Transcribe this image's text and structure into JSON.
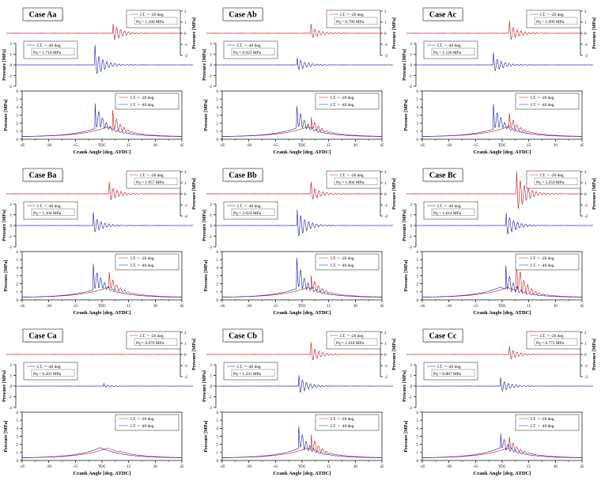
{
  "figure": {
    "xlabel": "Crank Angle [deg. ATDC]",
    "ylabel": "Pressure [MPa]",
    "x_tick_labels": [
      "-45",
      "-30",
      "-15",
      "TDC",
      "15",
      "30",
      "45"
    ],
    "x_tick_values": [
      -45,
      -30,
      -15,
      0,
      15,
      30,
      45
    ],
    "osc_tick_labels": [
      "2",
      "1",
      "0",
      "-1",
      "-2"
    ],
    "osc_tick_values": [
      2,
      1,
      0,
      -1,
      -2
    ],
    "bottom_tick_labels": [
      "0",
      "1",
      "2",
      "3",
      "4",
      "5",
      "6"
    ],
    "bottom_tick_values": [
      0,
      1,
      2,
      3,
      4,
      5,
      6
    ],
    "colors": {
      "red": "#cc1111",
      "blue": "#1a1aae",
      "legend_red": "#dd7777",
      "legend_blue": "#7777cc"
    },
    "legend_red_label": "I.T. = -20 deg.",
    "legend_blue_label": "I.T. = -40 deg."
  },
  "chart_data": [
    {
      "case": "Case Aa",
      "type": "line",
      "xlabel": "Crank Angle [deg. ATDC]",
      "ylabel": "Pressure [MPa]",
      "x_range": [
        -45,
        45
      ],
      "osc_ylim": [
        -2,
        2
      ],
      "bottom_ylim": [
        0,
        6
      ],
      "series": [
        {
          "name": "I.T. = -20 deg.",
          "color": "red",
          "pq_label": "Pq = 1.160 MPa",
          "pq_mpa": 1.16,
          "spike_angle_deg": 6,
          "bottom_peak_mpa": 3.5
        },
        {
          "name": "I.T. = -40 deg.",
          "color": "blue",
          "pq_label": "Pq = 1.716 MPa",
          "pq_mpa": 1.716,
          "spike_angle_deg": -4,
          "bottom_peak_mpa": 4.5
        }
      ]
    },
    {
      "case": "Case Ab",
      "type": "line",
      "xlabel": "Crank Angle [deg. ATDC]",
      "ylabel": "Pressure [MPa]",
      "x_range": [
        -45,
        45
      ],
      "osc_ylim": [
        -2,
        2
      ],
      "bottom_ylim": [
        0,
        6
      ],
      "series": [
        {
          "name": "I.T. = -20 deg.",
          "color": "red",
          "pq_label": "Pq = 0.799 MPa",
          "pq_mpa": 0.799,
          "spike_angle_deg": 5,
          "bottom_peak_mpa": 2.8
        },
        {
          "name": "I.T. = -40 deg.",
          "color": "blue",
          "pq_label": "Pq = 0.923 MPa",
          "pq_mpa": 0.923,
          "spike_angle_deg": -3,
          "bottom_peak_mpa": 4.0
        }
      ]
    },
    {
      "case": "Case Ac",
      "type": "line",
      "xlabel": "Crank Angle [deg. ATDC]",
      "ylabel": "Pressure [MPa]",
      "x_range": [
        -45,
        45
      ],
      "osc_ylim": [
        -2,
        2
      ],
      "bottom_ylim": [
        0,
        6
      ],
      "series": [
        {
          "name": "I.T. = -20 deg.",
          "color": "red",
          "pq_label": "Pq = 1.099 MPa",
          "pq_mpa": 1.099,
          "spike_angle_deg": 4,
          "bottom_peak_mpa": 3.2
        },
        {
          "name": "I.T. = -40 deg.",
          "color": "blue",
          "pq_label": "Pq = 1.126 MPa",
          "pq_mpa": 1.126,
          "spike_angle_deg": -5,
          "bottom_peak_mpa": 4.3
        }
      ]
    },
    {
      "case": "Case Ba",
      "type": "line",
      "xlabel": "Crank Angle [deg. ATDC]",
      "ylabel": "Pressure [MPa]",
      "x_range": [
        -45,
        45
      ],
      "osc_ylim": [
        -2,
        2
      ],
      "bottom_ylim": [
        0,
        6
      ],
      "series": [
        {
          "name": "I.T. = -20 deg.",
          "color": "red",
          "pq_label": "Pq = 1.057 MPa",
          "pq_mpa": 1.057,
          "spike_angle_deg": 4,
          "bottom_peak_mpa": 3.4
        },
        {
          "name": "I.T. = -40 deg.",
          "color": "blue",
          "pq_label": "Pq = 1.204 MPa",
          "pq_mpa": 1.204,
          "spike_angle_deg": -5,
          "bottom_peak_mpa": 4.4
        }
      ]
    },
    {
      "case": "Case Bb",
      "type": "line",
      "xlabel": "Crank Angle [deg. ATDC]",
      "ylabel": "Pressure [MPa]",
      "x_range": [
        -45,
        45
      ],
      "osc_ylim": [
        -2,
        2
      ],
      "bottom_ylim": [
        0,
        6
      ],
      "series": [
        {
          "name": "I.T. = -20 deg.",
          "color": "red",
          "pq_label": "Pq = 1.004 MPa",
          "pq_mpa": 1.004,
          "spike_angle_deg": 5,
          "bottom_peak_mpa": 3.1
        },
        {
          "name": "I.T. = -40 deg.",
          "color": "blue",
          "pq_label": "Pq = 2.024 MPa",
          "pq_mpa": 2.024,
          "spike_angle_deg": -3,
          "bottom_peak_mpa": 5.0
        }
      ]
    },
    {
      "case": "Case Bc",
      "type": "line",
      "xlabel": "Crank Angle [deg. ATDC]",
      "ylabel": "Pressure [MPa]",
      "x_range": [
        -45,
        45
      ],
      "osc_ylim": [
        -2,
        2
      ],
      "bottom_ylim": [
        0,
        6
      ],
      "series": [
        {
          "name": "I.T. = -20 deg.",
          "color": "red",
          "pq_label": "Pq = 3.259 MPa",
          "pq_mpa": 3.259,
          "spike_angle_deg": 8,
          "bottom_peak_mpa": 5.2
        },
        {
          "name": "I.T. = -40 deg.",
          "color": "blue",
          "pq_label": "Pq = 1.614 MPa",
          "pq_mpa": 1.614,
          "spike_angle_deg": 2,
          "bottom_peak_mpa": 4.2
        }
      ]
    },
    {
      "case": "Case Ca",
      "type": "line",
      "xlabel": "Crank Angle [deg. ATDC]",
      "ylabel": "Pressure [MPa]",
      "x_range": [
        -45,
        45
      ],
      "osc_ylim": [
        -2,
        2
      ],
      "bottom_ylim": [
        0,
        6
      ],
      "series": [
        {
          "name": "I.T. = -20 deg.",
          "color": "red",
          "pq_label": "Pq = 0.070 MPa",
          "pq_mpa": 0.07,
          "spike_angle_deg": 10,
          "bottom_peak_mpa": 1.25
        },
        {
          "name": "I.T. = -40 deg.",
          "color": "blue",
          "pq_label": "Pq = 0.201 MPa",
          "pq_mpa": 0.201,
          "spike_angle_deg": 1,
          "bottom_peak_mpa": 1.35
        }
      ]
    },
    {
      "case": "Case Cb",
      "type": "line",
      "xlabel": "Crank Angle [deg. ATDC]",
      "ylabel": "Pressure [MPa]",
      "x_range": [
        -45,
        45
      ],
      "osc_ylim": [
        -2,
        2
      ],
      "bottom_ylim": [
        0,
        6
      ],
      "series": [
        {
          "name": "I.T. = -20 deg.",
          "color": "red",
          "pq_label": "Pq = 1.018 MPa",
          "pq_mpa": 1.018,
          "spike_angle_deg": 5,
          "bottom_peak_mpa": 3.3
        },
        {
          "name": "I.T. = -40 deg.",
          "color": "blue",
          "pq_label": "Pq = 1.231 MPa",
          "pq_mpa": 1.231,
          "spike_angle_deg": -2,
          "bottom_peak_mpa": 4.3
        }
      ]
    },
    {
      "case": "Case Cc",
      "type": "line",
      "xlabel": "Crank Angle [deg. ATDC]",
      "ylabel": "Pressure [MPa]",
      "x_range": [
        -45,
        45
      ],
      "osc_ylim": [
        -2,
        2
      ],
      "bottom_ylim": [
        0,
        6
      ],
      "series": [
        {
          "name": "I.T. = -20 deg.",
          "color": "red",
          "pq_label": "Pq = 0.772 MPa",
          "pq_mpa": 0.772,
          "spike_angle_deg": 4,
          "bottom_peak_mpa": 2.9
        },
        {
          "name": "I.T. = -40 deg.",
          "color": "blue",
          "pq_label": "Pq = 0.887 MPa",
          "pq_mpa": 0.887,
          "spike_angle_deg": -1,
          "bottom_peak_mpa": 3.6
        }
      ]
    }
  ]
}
